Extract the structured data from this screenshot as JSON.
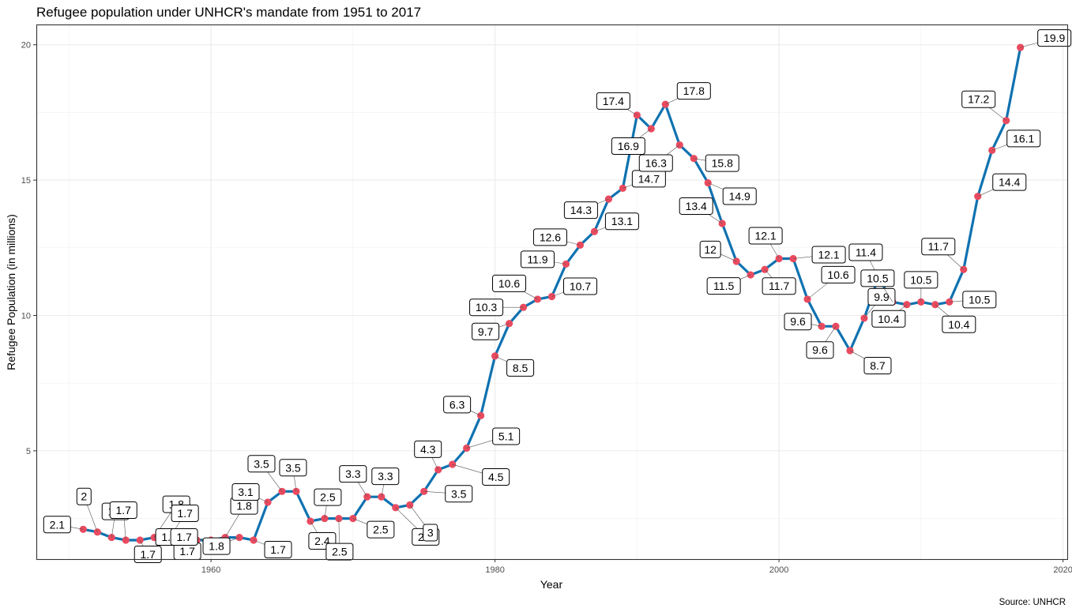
{
  "chart_data": {
    "type": "line",
    "title": "Refugee population under UNHCR's mandate from 1951 to 2017",
    "xlabel": "Year",
    "ylabel": "Refugee Population (in millions)",
    "caption": "Source: UNHCR",
    "xlim": [
      1947.7,
      2020.3
    ],
    "ylim": [
      1.0,
      20.75
    ],
    "x_ticks": [
      1960,
      1980,
      2000,
      2020
    ],
    "y_ticks": [
      5,
      10,
      15,
      20
    ],
    "grid": true,
    "line_color": "#0f72b0",
    "point_color": "#ea4a5f",
    "series": [
      {
        "x": [
          1951,
          1952,
          1953,
          1954,
          1955,
          1956,
          1957,
          1958,
          1959,
          1960,
          1961,
          1962,
          1963,
          1964,
          1965,
          1966,
          1967,
          1968,
          1969,
          1970,
          1971,
          1972,
          1973,
          1974,
          1975,
          1976,
          1977,
          1978,
          1979,
          1980,
          1981,
          1982,
          1983,
          1984,
          1985,
          1986,
          1987,
          1988,
          1989,
          1990,
          1991,
          1992,
          1993,
          1994,
          1995,
          1996,
          1997,
          1998,
          1999,
          2000,
          2001,
          2002,
          2003,
          2004,
          2005,
          2006,
          2007,
          2008,
          2009,
          2010,
          2011,
          2012,
          2013,
          2014,
          2015,
          2016,
          2017
        ],
        "values": [
          2.1,
          2.0,
          1.8,
          1.7,
          1.7,
          1.8,
          1.7,
          1.7,
          1.7,
          1.7,
          1.8,
          1.8,
          1.7,
          3.1,
          3.5,
          3.5,
          2.4,
          2.5,
          2.5,
          2.5,
          3.3,
          3.3,
          2.9,
          3.0,
          3.5,
          4.3,
          4.5,
          5.1,
          6.3,
          8.5,
          9.7,
          10.3,
          10.6,
          10.7,
          11.9,
          12.6,
          13.1,
          14.3,
          14.7,
          17.4,
          16.9,
          17.8,
          16.3,
          15.8,
          14.9,
          13.4,
          12.0,
          11.5,
          11.7,
          12.1,
          12.1,
          10.6,
          9.6,
          9.6,
          8.7,
          9.9,
          11.4,
          10.5,
          10.4,
          10.5,
          10.4,
          10.5,
          11.7,
          14.4,
          16.1,
          17.2,
          19.9
        ],
        "labels": [
          "2.1",
          "2",
          "1.8",
          "1.7",
          "1.7",
          "1.8",
          "1.7",
          "1.7",
          "1.7",
          "1.7",
          "1.8",
          "1.8",
          "1.7",
          "3.1",
          "3.5",
          "3.5",
          "2.4",
          "2.5",
          "2.5",
          "2.5",
          "3.3",
          "3.3",
          "2.9",
          "3",
          "3.5",
          "4.3",
          "4.5",
          "5.1",
          "6.3",
          "8.5",
          "9.7",
          "10.3",
          "10.6",
          "10.7",
          "11.9",
          "12.6",
          "13.1",
          "14.3",
          "14.7",
          "17.4",
          "16.9",
          "17.8",
          "16.3",
          "15.8",
          "14.9",
          "13.4",
          "12",
          "11.5",
          "11.7",
          "12.1",
          "12.1",
          "10.6",
          "9.6",
          "9.6",
          "8.7",
          "9.9",
          "11.4",
          "10.5",
          "10.4",
          "10.5",
          "10.4",
          "10.5",
          "11.7",
          "14.4",
          "16.1",
          "17.2",
          "19.9"
        ]
      }
    ]
  }
}
